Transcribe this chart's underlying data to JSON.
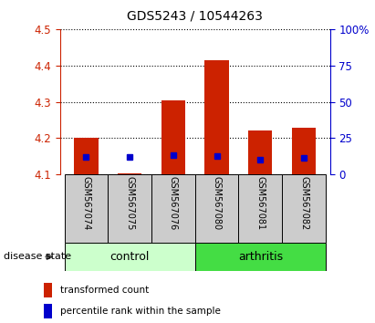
{
  "title": "GDS5243 / 10544263",
  "samples": [
    "GSM567074",
    "GSM567075",
    "GSM567076",
    "GSM567080",
    "GSM567081",
    "GSM567082"
  ],
  "groups": [
    "control",
    "control",
    "control",
    "arthritis",
    "arthritis",
    "arthritis"
  ],
  "red_bar_tops": [
    4.202,
    4.103,
    4.305,
    4.415,
    4.222,
    4.228
  ],
  "red_bar_bottom": 4.1,
  "blue_marker_y": [
    4.148,
    4.148,
    4.153,
    4.15,
    4.14,
    4.145
  ],
  "blue_marker_size": 4.5,
  "ylim_left": [
    4.1,
    4.5
  ],
  "yticks_left": [
    4.1,
    4.2,
    4.3,
    4.4,
    4.5
  ],
  "ylim_right": [
    0,
    100
  ],
  "yticks_right": [
    0,
    25,
    50,
    75,
    100
  ],
  "yticklabels_right": [
    "0",
    "25",
    "50",
    "75",
    "100%"
  ],
  "left_axis_color": "#cc2200",
  "right_axis_color": "#0000cc",
  "bar_color": "#cc2200",
  "blue_dot_color": "#0000cc",
  "control_bg_light": "#ccffcc",
  "arthritis_bg": "#44dd44",
  "label_bg": "#cccccc",
  "bar_width": 0.55,
  "legend_red_label": "transformed count",
  "legend_blue_label": "percentile rank within the sample"
}
